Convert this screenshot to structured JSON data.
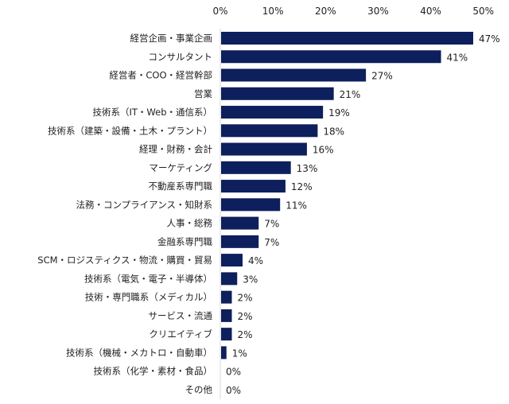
{
  "chart_data": {
    "type": "bar",
    "orientation": "horizontal",
    "categories": [
      "経営企画・事業企画",
      "コンサルタント",
      "経営者・COO・経営幹部",
      "営業",
      "技術系（IT・Web・通信系）",
      "技術系（建築・設備・土木・プラント）",
      "経理・財務・会計",
      "マーケティング",
      "不動産系専門職",
      "法務・コンプライアンス・知財系",
      "人事・総務",
      "金融系専門職",
      "SCM・ロジスティクス・物流・購買・貿易",
      "技術系（電気・電子・半導体）",
      "技術・専門職系（メディカル）",
      "サービス・流通",
      "クリエイティブ",
      "技術系（機械・メカトロ・自動車）",
      "技術系（化学・素材・食品）",
      "その他"
    ],
    "values": [
      47,
      41,
      27,
      21,
      19,
      18,
      16,
      13,
      12,
      11,
      7,
      7,
      4,
      3,
      2,
      2,
      2,
      1,
      0,
      0
    ],
    "value_labels": [
      "47%",
      "41%",
      "27%",
      "21%",
      "19%",
      "18%",
      "16%",
      "13%",
      "12%",
      "11%",
      "7%",
      "7%",
      "4%",
      "3%",
      "2%",
      "2%",
      "2%",
      "1%",
      "0%",
      "0%"
    ],
    "xlim": [
      0,
      50
    ],
    "x_ticks": [
      "0%",
      "10%",
      "20%",
      "30%",
      "40%",
      "50%"
    ],
    "x_axis_position": "top",
    "grid": false,
    "bar_color": "#0d1f5c"
  }
}
